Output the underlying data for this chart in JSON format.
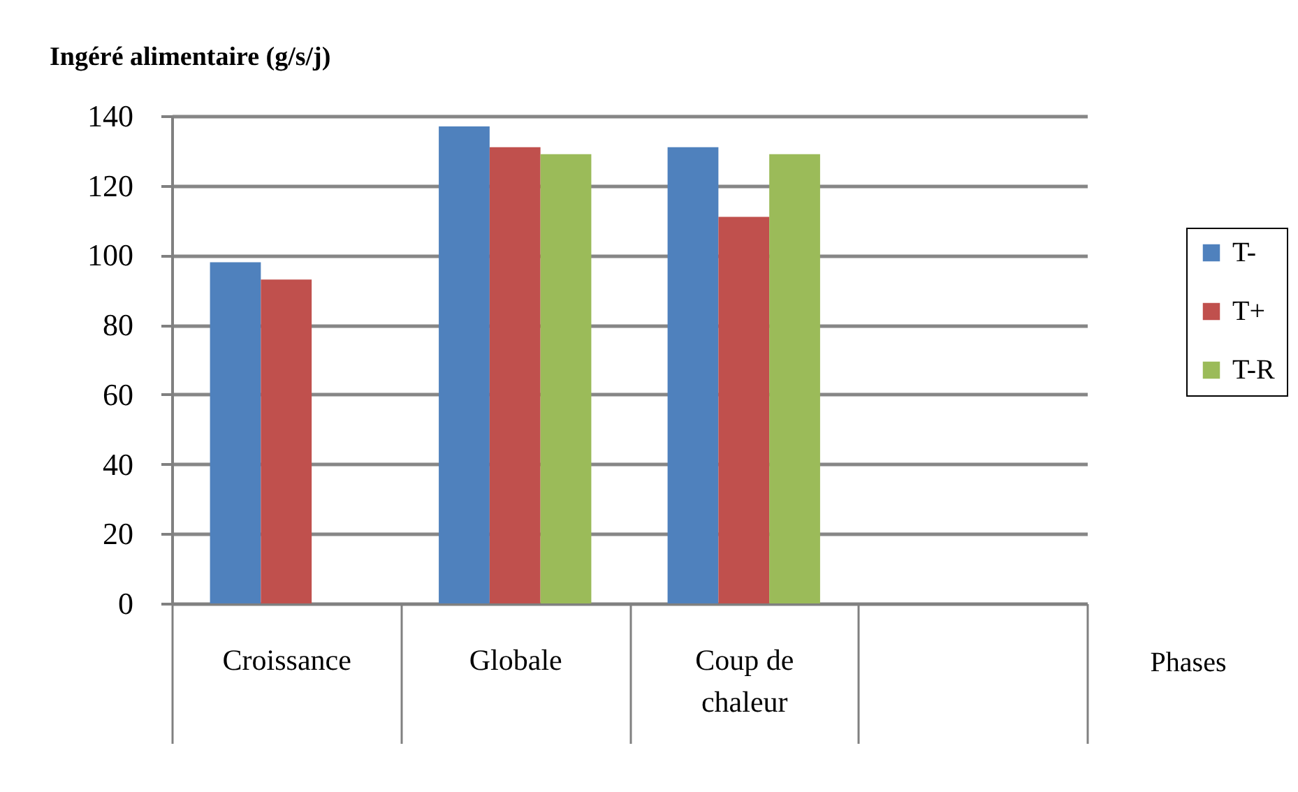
{
  "chart_data": {
    "type": "bar",
    "ylabel": "Ingéré alimentaire (g/s/j)",
    "xlabel": "Phases",
    "categories": [
      "Croissance",
      "Globale",
      "Coup de chaleur",
      null
    ],
    "series": [
      {
        "name": "T-",
        "color": "#4f81bd",
        "values": [
          98,
          137,
          131,
          null
        ]
      },
      {
        "name": "T+",
        "color": "#c0504d",
        "values": [
          93,
          131,
          111,
          null
        ]
      },
      {
        "name": "T-R",
        "color": "#9bbb59",
        "values": [
          null,
          129,
          129,
          null
        ]
      }
    ],
    "ylim": [
      0,
      140
    ],
    "yticks": [
      0,
      20,
      40,
      60,
      80,
      100,
      120,
      140
    ],
    "grid": "y",
    "legend": "right"
  }
}
